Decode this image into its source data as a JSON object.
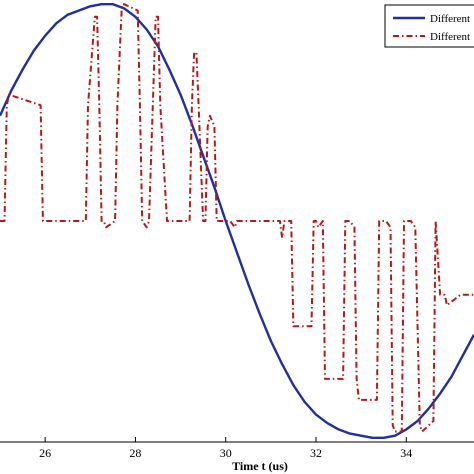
{
  "chart_data": {
    "type": "line",
    "xlabel": "Time t (us)",
    "ylabel": "",
    "title": "",
    "xlim": [
      25,
      35.5
    ],
    "ylim": [
      -1.05,
      1.05
    ],
    "x_ticks": [
      26,
      28,
      30,
      32,
      34
    ],
    "x_tick_labels": [
      "26",
      "28",
      "30",
      "32",
      "34"
    ],
    "grid": false,
    "legend_position": "top-right",
    "series": [
      {
        "name": "Different",
        "color": "#1f2fa0",
        "style": "solid",
        "x": [
          25,
          25.25,
          25.5,
          25.75,
          26,
          26.25,
          26.5,
          26.75,
          27,
          27.25,
          27.5,
          27.75,
          28,
          28.25,
          28.5,
          28.75,
          29,
          29.25,
          29.5,
          29.75,
          30,
          30.25,
          30.5,
          30.75,
          31,
          31.25,
          31.5,
          31.75,
          32,
          32.25,
          32.5,
          32.75,
          33,
          33.25,
          33.5,
          33.75,
          34,
          34.25,
          34.5,
          34.75,
          35,
          35.25,
          35.5
        ],
        "y": [
          0.5,
          0.62,
          0.72,
          0.81,
          0.88,
          0.94,
          0.98,
          1.0,
          1.02,
          1.03,
          1.03,
          1.01,
          0.97,
          0.91,
          0.83,
          0.72,
          0.6,
          0.46,
          0.31,
          0.16,
          0.0,
          -0.15,
          -0.3,
          -0.44,
          -0.57,
          -0.68,
          -0.78,
          -0.86,
          -0.92,
          -0.96,
          -0.99,
          -1.01,
          -1.02,
          -1.03,
          -1.03,
          -1.02,
          -0.99,
          -0.95,
          -0.89,
          -0.82,
          -0.74,
          -0.64,
          -0.54
        ]
      },
      {
        "name": "Different",
        "color": "#b01a1a",
        "style": "dash-dot",
        "x": [
          25,
          25.1,
          25.15,
          25.2,
          25.9,
          25.95,
          26.05,
          26.9,
          26.95,
          27.1,
          27.15,
          27.2,
          27.25,
          27.3,
          27.35,
          27.55,
          27.6,
          27.7,
          27.75,
          28.05,
          28.1,
          28.15,
          28.25,
          28.3,
          28.45,
          28.5,
          28.55,
          28.7,
          28.75,
          29.2,
          29.25,
          29.3,
          29.35,
          29.4,
          29.5,
          29.55,
          29.6,
          29.65,
          29.75,
          29.8,
          29.85,
          30.05,
          30.1,
          30.2,
          30.25,
          30.3,
          31.2,
          31.25,
          31.3,
          31.35,
          31.45,
          31.5,
          31.55,
          31.9,
          31.95,
          32.0,
          32.05,
          32.15,
          32.2,
          32.25,
          32.6,
          32.65,
          32.7,
          32.75,
          32.85,
          32.9,
          32.95,
          33.35,
          33.4,
          33.5,
          33.55,
          33.65,
          33.7,
          33.75,
          33.9,
          33.95,
          34.05,
          34.1,
          34.2,
          34.3,
          34.35,
          34.6,
          34.65,
          34.75,
          34.85,
          34.9,
          35.2,
          35.5
        ],
        "y": [
          0.0,
          0.0,
          0.55,
          0.6,
          0.55,
          0.0,
          0.0,
          0.0,
          0.55,
          0.97,
          0.97,
          0.55,
          0.0,
          0.0,
          -0.03,
          0.0,
          0.55,
          1.03,
          1.03,
          1.0,
          0.55,
          0.0,
          -0.03,
          0.0,
          0.97,
          0.97,
          0.55,
          0.0,
          0.0,
          0.0,
          0.55,
          0.8,
          0.8,
          0.55,
          0.0,
          0.0,
          0.45,
          0.5,
          0.45,
          0.0,
          0.0,
          0.0,
          0.0,
          -0.03,
          0.0,
          0.0,
          0.0,
          -0.08,
          0.0,
          0.0,
          0.0,
          -0.5,
          -0.5,
          -0.5,
          0.0,
          0.0,
          -0.03,
          0.0,
          -0.75,
          -0.75,
          -0.75,
          0.0,
          0.0,
          0.0,
          -0.03,
          -0.75,
          -0.85,
          -0.85,
          0.0,
          0.0,
          0.0,
          -0.03,
          -0.97,
          -1.0,
          -1.0,
          0.0,
          0.0,
          0.0,
          -0.03,
          -0.97,
          -1.0,
          -0.95,
          0.0,
          -0.35,
          -0.35,
          -0.4,
          -0.35,
          -0.35
        ]
      }
    ]
  }
}
